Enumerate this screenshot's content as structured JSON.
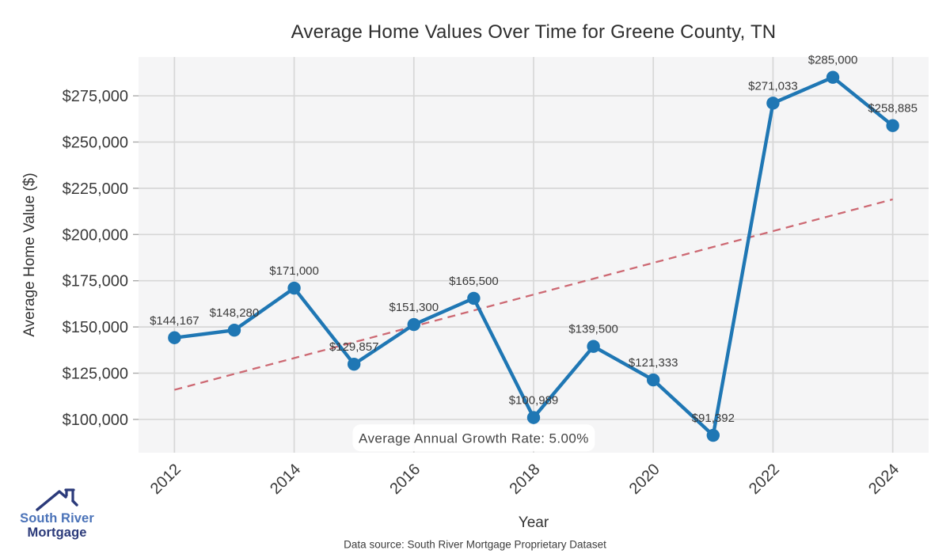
{
  "chart_data": {
    "type": "line",
    "title": "Average Home Values Over Time for Greene County, TN",
    "xlabel": "Year",
    "ylabel": "Average Home Value ($)",
    "x": [
      2012,
      2013,
      2014,
      2015,
      2016,
      2017,
      2018,
      2019,
      2020,
      2021,
      2022,
      2023,
      2024
    ],
    "values": [
      144167,
      148280,
      171000,
      129857,
      151300,
      165500,
      100989,
      139500,
      121333,
      91392,
      271033,
      285000,
      258885
    ],
    "point_labels": [
      "$144,167",
      "$148,280",
      "$171,000",
      "$129,857",
      "$151,300",
      "$165,500",
      "$100,989",
      "$139,500",
      "$121,333",
      "$91,392",
      "$271,033",
      "$285,000",
      "$258,885"
    ],
    "x_ticks": [
      2012,
      2014,
      2016,
      2018,
      2020,
      2022,
      2024
    ],
    "x_tick_labels": [
      "2012",
      "2014",
      "2016",
      "2018",
      "2020",
      "2022",
      "2024"
    ],
    "y_ticks": [
      100000,
      125000,
      150000,
      175000,
      200000,
      225000,
      250000,
      275000
    ],
    "y_tick_labels": [
      "$100,000",
      "$125,000",
      "$150,000",
      "$175,000",
      "$200,000",
      "$225,000",
      "$250,000",
      "$275,000"
    ],
    "xlim": [
      2011.4,
      2024.6
    ],
    "ylim": [
      82000,
      296000
    ],
    "grid": true,
    "legend": "none",
    "line_color": "#1f77b4",
    "marker_color": "#1f77b4",
    "plot_bg_color": "#f5f5f6",
    "grid_color": "#d7d7d7",
    "trend": {
      "style": "dashed",
      "color": "#cd6973",
      "x": [
        2012,
        2024
      ],
      "values": [
        116000,
        219000
      ]
    },
    "annotation": {
      "text": "Average Annual Growth Rate: 5.00%",
      "x": 2017.0,
      "y": 90000
    }
  },
  "footer": {
    "source": "Data source: South River Mortgage Proprietary Dataset"
  },
  "logo": {
    "line1": "South River",
    "line2": "Mortgage",
    "color1": "#4a72b8",
    "color2": "#2b3a7a"
  }
}
